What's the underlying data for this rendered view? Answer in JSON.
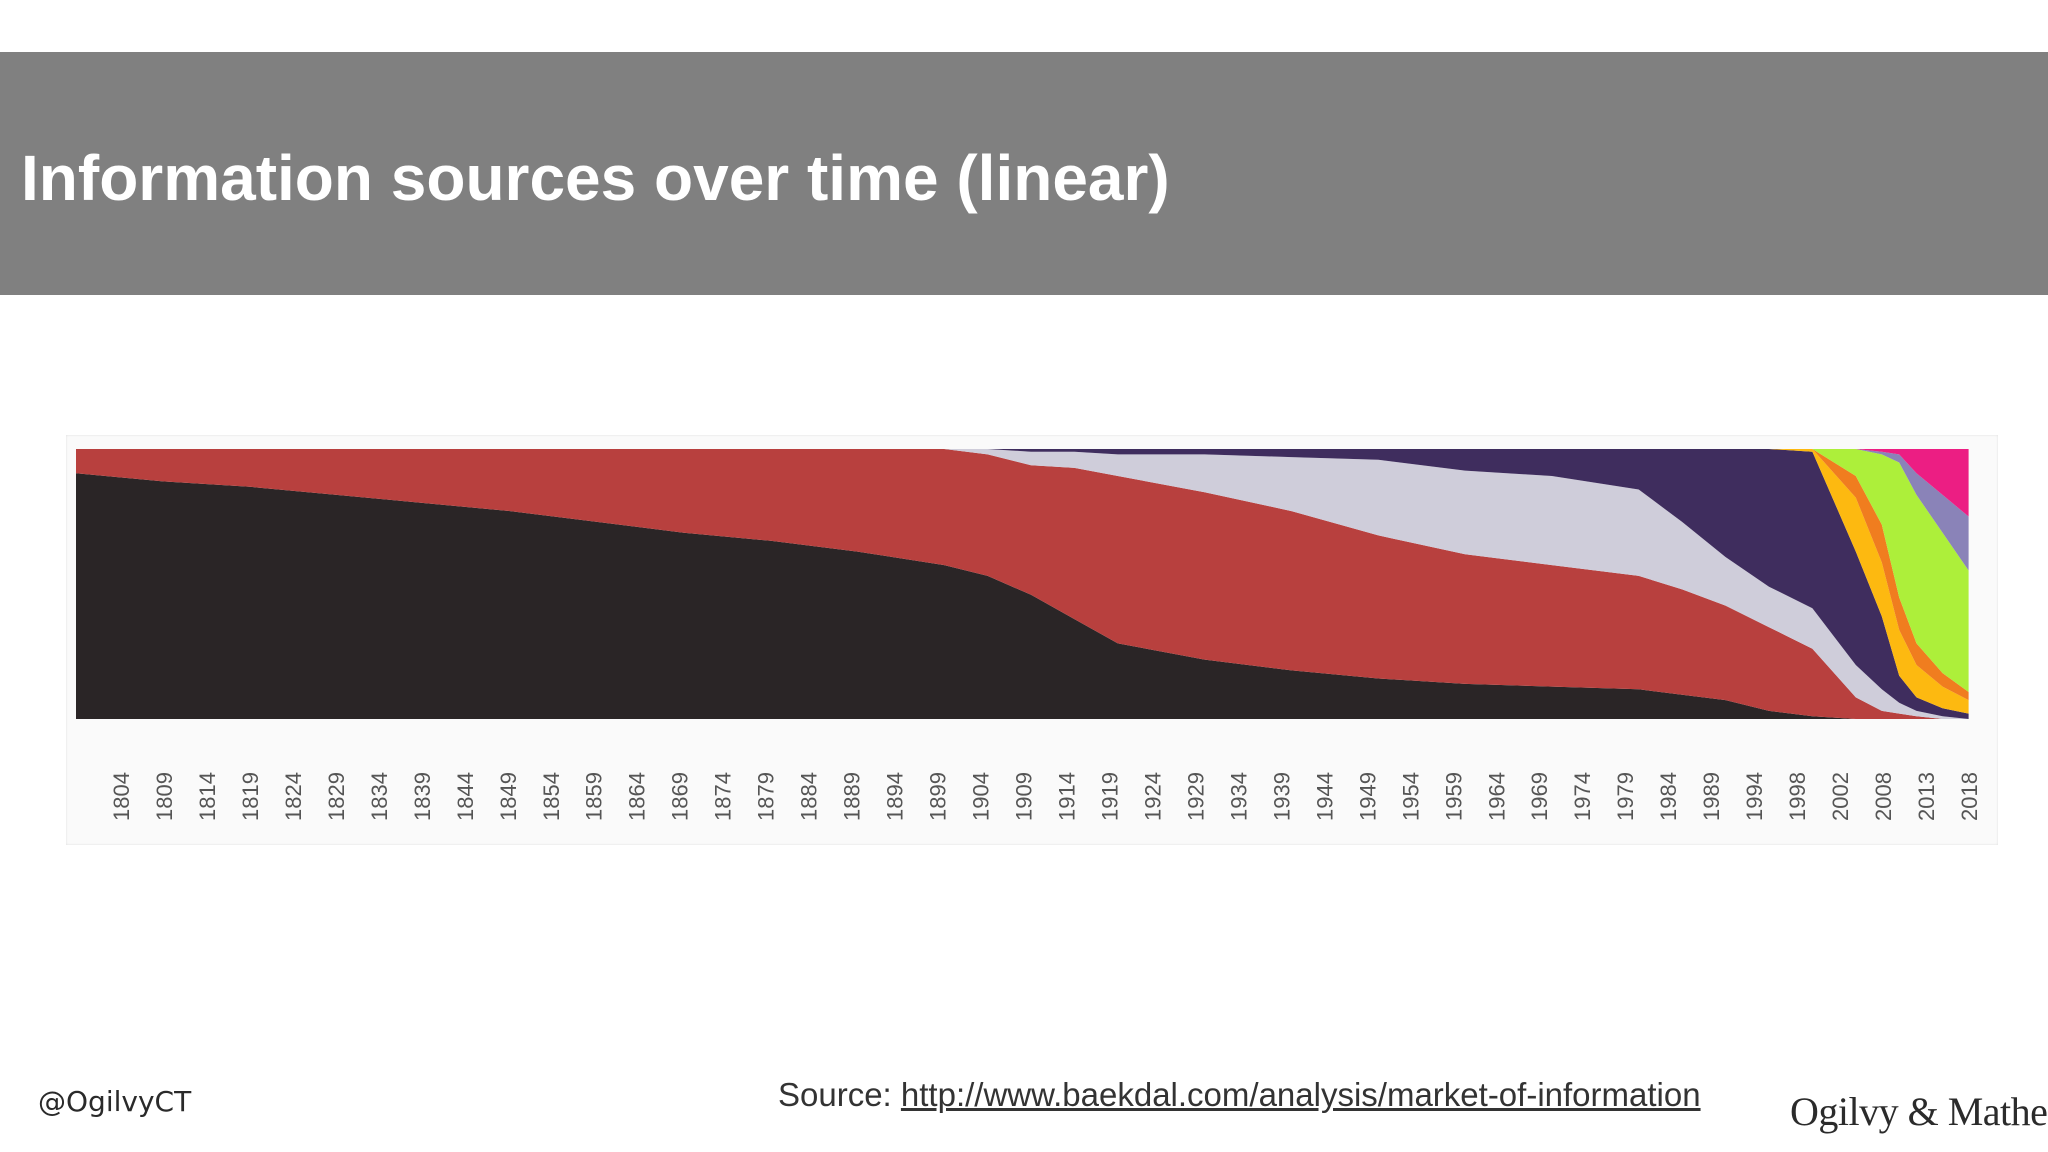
{
  "slide": {
    "title": "Information sources over time (linear)",
    "handle": "@OgilvyCT",
    "source_prefix": "Source: ",
    "source_link": "http://www.baekdal.com/analysis/market-of-information",
    "logo_text": "Ogilvy & Mather"
  },
  "colors": {
    "title_band": "#808080",
    "series": [
      "#2a2526",
      "#b8403e",
      "#cfcdda",
      "#3f2d5e",
      "#fdb910",
      "#f07d1f",
      "#adef3a",
      "#8a83b8",
      "#ec1e83"
    ]
  },
  "chart_data": {
    "type": "area",
    "stacked": true,
    "normalized": true,
    "xlim": [
      1800,
      2020
    ],
    "ylim": [
      0,
      100
    ],
    "legend": "none",
    "grid": false,
    "x_tick_labels": [
      "1804",
      "1809",
      "1814",
      "1819",
      "1824",
      "1829",
      "1834",
      "1839",
      "1844",
      "1849",
      "1854",
      "1859",
      "1864",
      "1869",
      "1874",
      "1879",
      "1884",
      "1889",
      "1894",
      "1899",
      "1904",
      "1909",
      "1914",
      "1919",
      "1924",
      "1929",
      "1934",
      "1939",
      "1944",
      "1949",
      "1954",
      "1959",
      "1964",
      "1969",
      "1974",
      "1979",
      "1984",
      "1989",
      "1994",
      "1998",
      "2002",
      "2008",
      "2013",
      "2018"
    ],
    "x": [
      1800,
      1810,
      1820,
      1830,
      1840,
      1850,
      1860,
      1870,
      1880,
      1890,
      1900,
      1905,
      1910,
      1915,
      1920,
      1930,
      1940,
      1950,
      1960,
      1970,
      1980,
      1985,
      1990,
      1995,
      2000,
      2005,
      2008,
      2010,
      2012,
      2015,
      2018
    ],
    "series": [
      {
        "values": [
          91,
          88,
          86,
          83,
          80,
          77,
          73,
          69,
          66,
          62,
          57,
          53,
          46,
          37,
          28,
          22,
          18,
          15,
          13,
          12,
          11,
          9,
          7,
          3,
          1,
          0,
          0,
          0,
          0,
          0,
          0
        ]
      },
      {
        "values": [
          9,
          12,
          14,
          17,
          20,
          23,
          27,
          31,
          34,
          38,
          43,
          45,
          48,
          56,
          62,
          62,
          59,
          53,
          48,
          45,
          42,
          39,
          35,
          31,
          25,
          8,
          3,
          2,
          1,
          0,
          0
        ]
      },
      {
        "values": [
          0,
          0,
          0,
          0,
          0,
          0,
          0,
          0,
          0,
          0,
          0,
          2,
          5,
          6,
          8,
          14,
          20,
          28,
          31,
          33,
          32,
          25,
          18,
          15,
          15,
          12,
          8,
          4,
          2,
          1,
          0
        ]
      },
      {
        "values": [
          0,
          0,
          0,
          0,
          0,
          0,
          0,
          0,
          0,
          0,
          0,
          0,
          1,
          1,
          2,
          2,
          3,
          4,
          8,
          10,
          15,
          27,
          40,
          51,
          58,
          42,
          27,
          10,
          5,
          3,
          2
        ]
      },
      {
        "values": [
          0,
          0,
          0,
          0,
          0,
          0,
          0,
          0,
          0,
          0,
          0,
          0,
          0,
          0,
          0,
          0,
          0,
          0,
          0,
          0,
          0,
          0,
          0,
          0,
          1,
          20,
          20,
          17,
          12,
          8,
          5
        ]
      },
      {
        "values": [
          0,
          0,
          0,
          0,
          0,
          0,
          0,
          0,
          0,
          0,
          0,
          0,
          0,
          0,
          0,
          0,
          0,
          0,
          0,
          0,
          0,
          0,
          0,
          0,
          0,
          8,
          14,
          12,
          8,
          5,
          3
        ]
      },
      {
        "values": [
          0,
          0,
          0,
          0,
          0,
          0,
          0,
          0,
          0,
          0,
          0,
          0,
          0,
          0,
          0,
          0,
          0,
          0,
          0,
          0,
          0,
          0,
          0,
          0,
          0,
          10,
          26,
          50,
          55,
          52,
          45
        ]
      },
      {
        "values": [
          0,
          0,
          0,
          0,
          0,
          0,
          0,
          0,
          0,
          0,
          0,
          0,
          0,
          0,
          0,
          0,
          0,
          0,
          0,
          0,
          0,
          0,
          0,
          0,
          0,
          0,
          1,
          3,
          8,
          14,
          20
        ]
      },
      {
        "values": [
          0,
          0,
          0,
          0,
          0,
          0,
          0,
          0,
          0,
          0,
          0,
          0,
          0,
          0,
          0,
          0,
          0,
          0,
          0,
          0,
          0,
          0,
          0,
          0,
          0,
          0,
          1,
          2,
          9,
          17,
          25
        ]
      }
    ]
  }
}
